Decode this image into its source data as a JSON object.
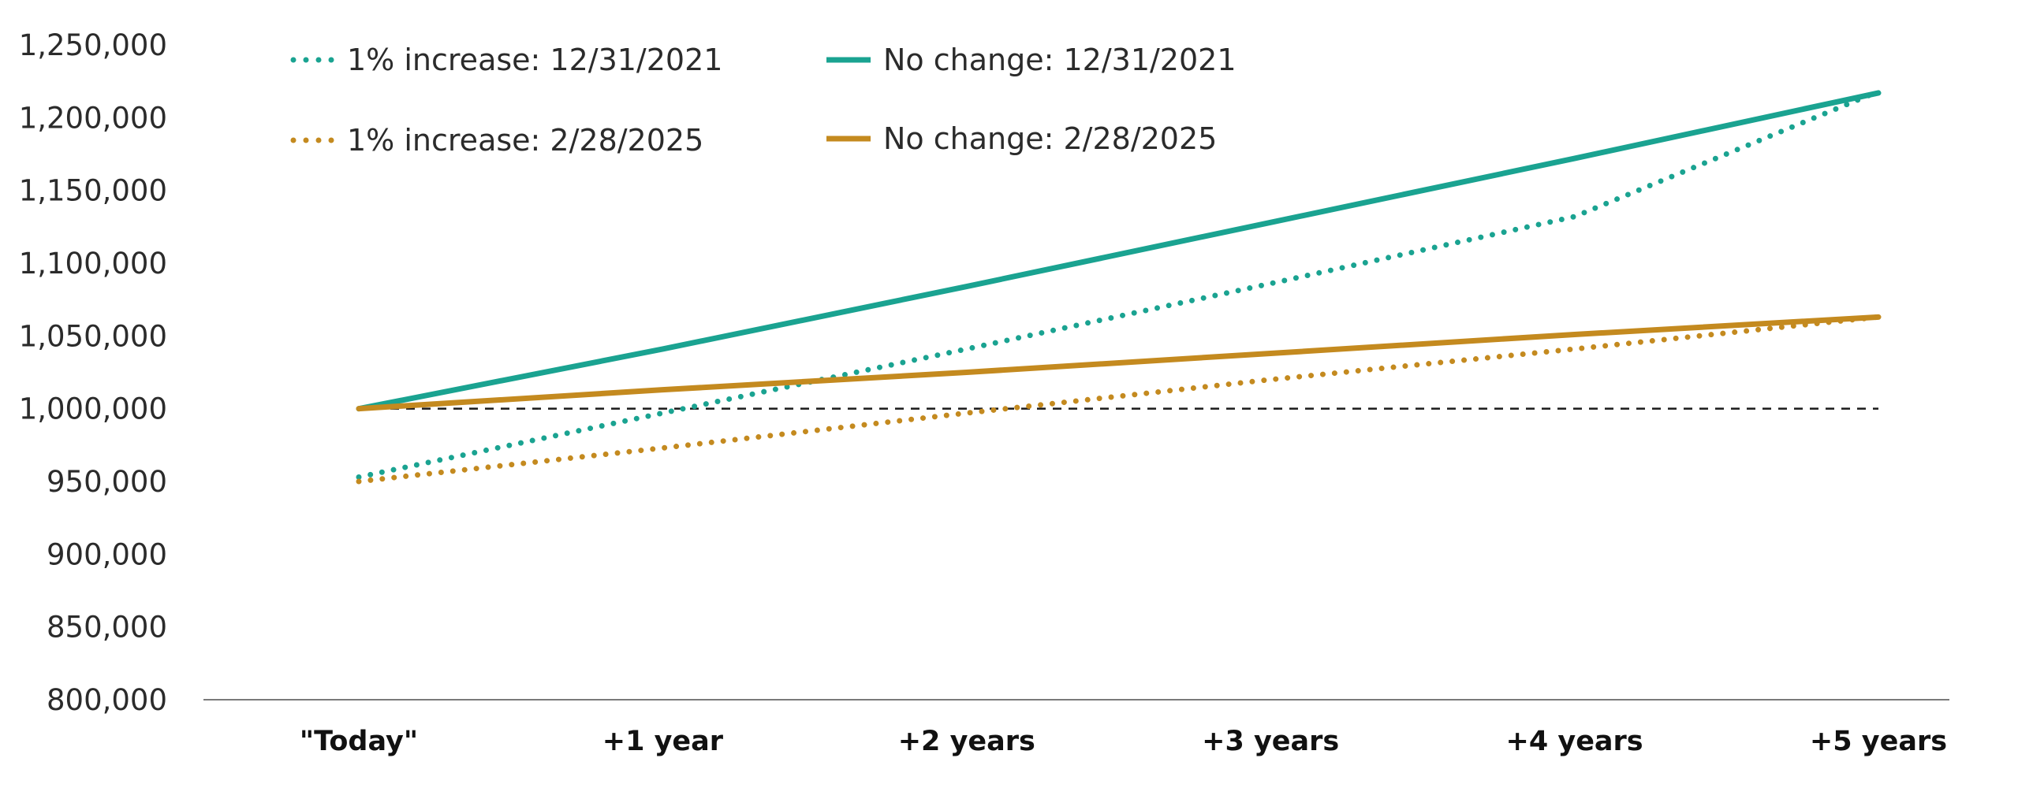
{
  "chart_data": {
    "type": "line",
    "categories": [
      "\"Today\"",
      "+1 year",
      "+2 years",
      "+3 years",
      "+4 years",
      "+5 years"
    ],
    "ylim": [
      800000,
      1250000
    ],
    "yticks": [
      800000,
      850000,
      900000,
      950000,
      1000000,
      1050000,
      1100000,
      1150000,
      1200000,
      1250000
    ],
    "ytick_labels": [
      "800,000",
      "850,000",
      "900,000",
      "950,000",
      "1,000,000",
      "1,050,000",
      "1,100,000",
      "1,150,000",
      "1,200,000",
      "1,250,000"
    ],
    "reference_line": 1000000,
    "legend_position": "top-left",
    "series": [
      {
        "name": "1% increase: 12/31/2021",
        "style": "dotted",
        "color": "#1aa391",
        "values": [
          953000,
          997000,
          1041000,
          1086000,
          1132000,
          1218000
        ]
      },
      {
        "name": "No change: 12/31/2021",
        "style": "solid",
        "color": "#1aa391",
        "values": [
          1000000,
          1041000,
          1084000,
          1128000,
          1172000,
          1217000
        ]
      },
      {
        "name": "1% increase: 2/28/2025",
        "style": "dotted",
        "color": "#c48a1f",
        "values": [
          950000,
          973000,
          997000,
          1020000,
          1041000,
          1063000
        ]
      },
      {
        "name": "No change: 2/28/2025",
        "style": "solid",
        "color": "#c48a1f",
        "values": [
          1000000,
          1013000,
          1025000,
          1038000,
          1051000,
          1063000
        ]
      }
    ]
  }
}
